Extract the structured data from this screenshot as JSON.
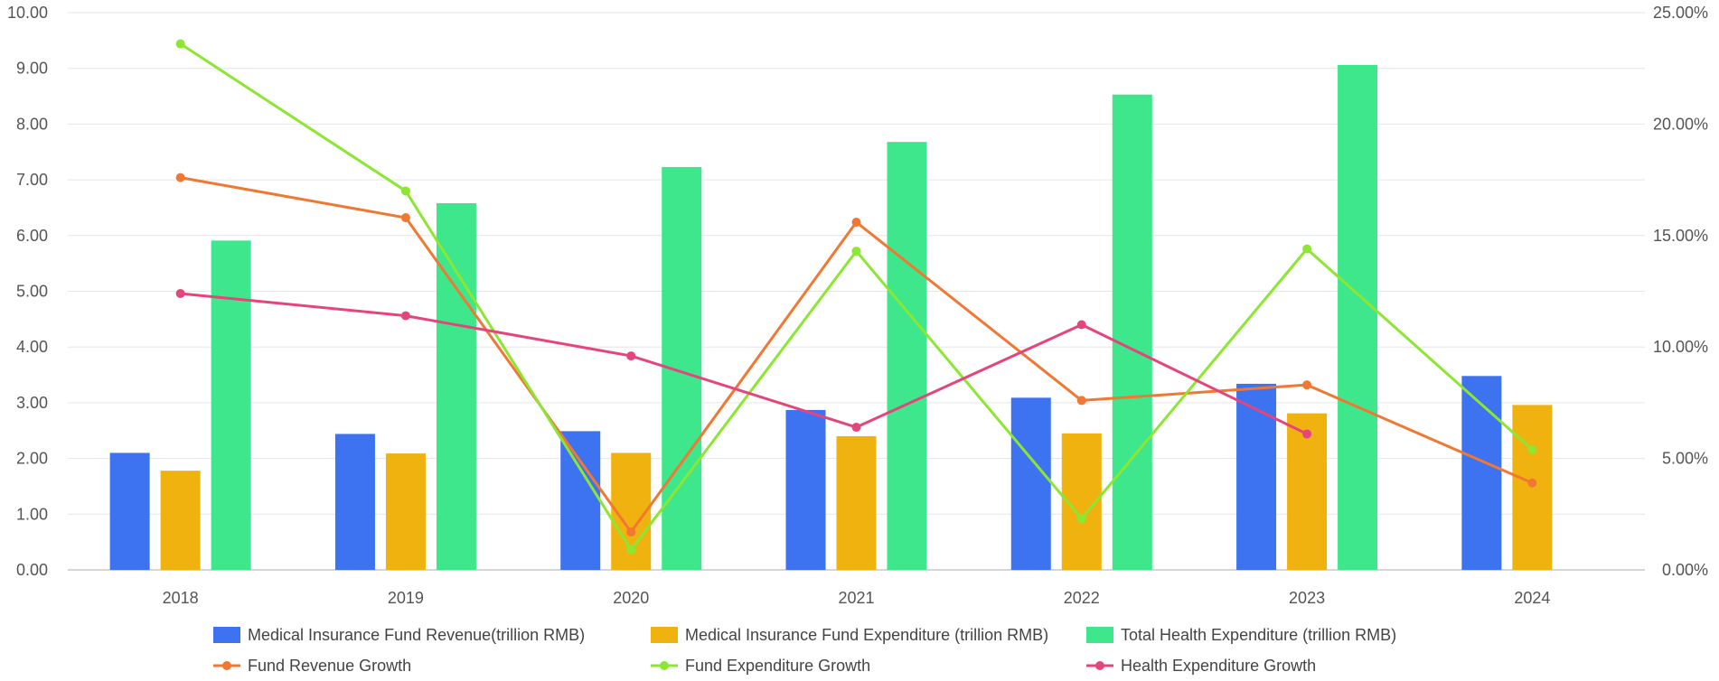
{
  "chart_data": {
    "type": "bar",
    "categories": [
      "2018",
      "2019",
      "2020",
      "2021",
      "2022",
      "2023",
      "2024"
    ],
    "y_left": {
      "min": 0,
      "max": 10,
      "step": 1,
      "tick_labels": [
        "0.00",
        "1.00",
        "2.00",
        "3.00",
        "4.00",
        "5.00",
        "6.00",
        "7.00",
        "8.00",
        "9.00",
        "10.00"
      ]
    },
    "y_right": {
      "min": 0,
      "max": 25,
      "step": 5,
      "tick_labels": [
        "0.00%",
        "5.00%",
        "10.00%",
        "15.00%",
        "20.00%",
        "25.00%"
      ]
    },
    "bar_series": [
      {
        "name": "Medical Insurance Fund Revenue(trillion RMB)",
        "color": "#3d73f0",
        "values": [
          2.1,
          2.44,
          2.49,
          2.87,
          3.09,
          3.34,
          3.48
        ]
      },
      {
        "name": "Medical Insurance Fund Expenditure (trillion RMB)",
        "color": "#f0b20f",
        "values": [
          1.78,
          2.09,
          2.1,
          2.4,
          2.45,
          2.81,
          2.96
        ]
      },
      {
        "name": "Total Health Expenditure (trillion RMB)",
        "color": "#3ee68c",
        "values": [
          5.91,
          6.58,
          7.23,
          7.68,
          8.53,
          9.06,
          null
        ]
      }
    ],
    "line_series": [
      {
        "name": "Fund Revenue Growth",
        "color": "#f07832",
        "axis": "right",
        "values": [
          17.6,
          15.8,
          1.7,
          15.6,
          7.6,
          8.3,
          3.9
        ]
      },
      {
        "name": "Fund Expenditure Growth",
        "color": "#8ce632",
        "axis": "right",
        "values": [
          23.6,
          17.0,
          0.9,
          14.3,
          2.3,
          14.4,
          5.4
        ]
      },
      {
        "name": "Health Expenditure Growth",
        "color": "#e6447c",
        "axis": "right",
        "values": [
          12.4,
          11.4,
          9.6,
          6.4,
          11.0,
          6.1,
          null
        ]
      }
    ],
    "legend_position": "bottom",
    "grid": true
  }
}
